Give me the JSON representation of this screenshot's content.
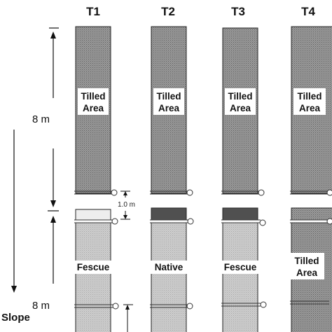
{
  "plots": [
    {
      "title": "T1",
      "upper_label": [
        "Tilled",
        "Area"
      ],
      "lower_label": [
        "Fescue"
      ]
    },
    {
      "title": "T2",
      "upper_label": [
        "Tilled",
        "Area"
      ],
      "lower_label": [
        "Native"
      ]
    },
    {
      "title": "T3",
      "upper_label": [
        "Tilled",
        "Area"
      ],
      "lower_label": [
        "Fescue"
      ]
    },
    {
      "title": "T4",
      "upper_label": [
        "Tilled",
        "Area"
      ],
      "lower_label": [
        "Tilled",
        "Area"
      ]
    }
  ],
  "dimensions": {
    "upper_length": "8 m",
    "lower_length": "8 m",
    "gap_length": "1.0 m"
  },
  "slope_label": "Slope",
  "colors": {
    "tilled_fill": "#8c8c8c",
    "grass_fill": "#c4c4c4",
    "dark_strip": "#505050",
    "light_strip": "#eeeeee",
    "outline": "#222222"
  }
}
